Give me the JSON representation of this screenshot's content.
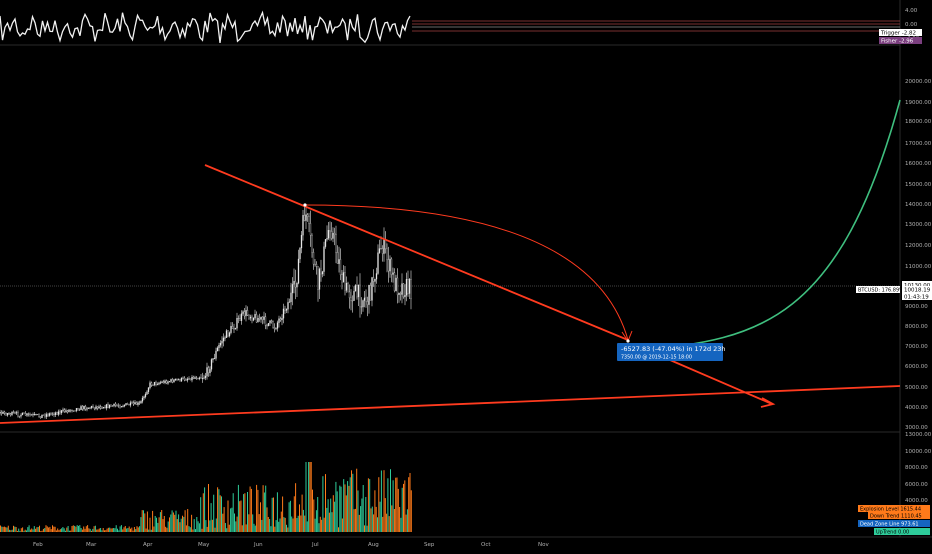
{
  "colors": {
    "background": "#000000",
    "price": "#e6e6e6",
    "trend": "#ff3b1f",
    "projection": "#3fbf7f",
    "volume_green": "#2ecc9a",
    "volume_orange": "#ff7a1a",
    "measure": "#1565c0",
    "axis_text": "#b0b0b0",
    "fisher_label": "#7b3f7f",
    "explosion_label": "#ff7a1a",
    "dead_zone_label": "#1565c0",
    "deadzone_badge": "#2ecc9a"
  },
  "oscillator": {
    "ticks": [
      "4.00",
      "0.00",
      "-4.00"
    ],
    "labels": [
      {
        "text": "Trigger -2.82",
        "kind": "trigger"
      },
      {
        "text": "Fisher -2.96",
        "kind": "fisher"
      }
    ]
  },
  "price_panel": {
    "ticks": [
      "20000.00",
      "19000.00",
      "18000.00",
      "17000.00",
      "16000.00",
      "15000.00",
      "14000.00",
      "13000.00",
      "12000.00",
      "11000.00",
      "9000.00",
      "8000.00",
      "7000.00",
      "6000.00",
      "5000.00",
      "4000.00",
      "3000.00"
    ],
    "crosshair_label": "10130.00",
    "ticker_label": "BTCUSD: 176.89%",
    "price_label": "10018.19",
    "countdown_label": "01:43:19",
    "measure": {
      "line1": "-6527.83 (-47.04%) in 172d 23h",
      "line2": "7350.00 @ 2019-12-15 18:00"
    }
  },
  "volume_panel": {
    "ticks": [
      "13000.00",
      "10000.00",
      "8000.00",
      "6000.00",
      "4000.00",
      "2000.00"
    ],
    "labels": [
      {
        "text": "Explosion Level 1615.44",
        "kind": "explosion"
      },
      {
        "text": "Down Trend 1110.45",
        "kind": "downtrend"
      },
      {
        "text": "Dead Zone Line 973.61",
        "kind": "deadzone"
      },
      {
        "text": "UpTrend 0.00",
        "kind": "uptrend"
      }
    ]
  },
  "x_axis": {
    "ticks": [
      "Feb",
      "Mar",
      "Apr",
      "May",
      "Jun",
      "Jul",
      "Aug",
      "Sep",
      "Oct",
      "Nov"
    ]
  }
}
